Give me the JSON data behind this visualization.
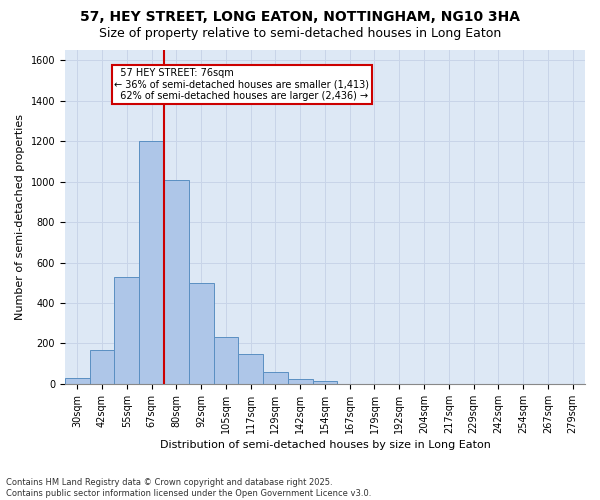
{
  "title": "57, HEY STREET, LONG EATON, NOTTINGHAM, NG10 3HA",
  "subtitle": "Size of property relative to semi-detached houses in Long Eaton",
  "xlabel": "Distribution of semi-detached houses by size in Long Eaton",
  "ylabel": "Number of semi-detached properties",
  "categories": [
    "30sqm",
    "42sqm",
    "55sqm",
    "67sqm",
    "80sqm",
    "92sqm",
    "105sqm",
    "117sqm",
    "129sqm",
    "142sqm",
    "154sqm",
    "167sqm",
    "179sqm",
    "192sqm",
    "204sqm",
    "217sqm",
    "229sqm",
    "242sqm",
    "254sqm",
    "267sqm",
    "279sqm"
  ],
  "values": [
    30,
    170,
    530,
    1200,
    1010,
    500,
    230,
    150,
    60,
    25,
    15,
    0,
    0,
    0,
    0,
    0,
    0,
    0,
    0,
    0,
    0
  ],
  "bar_color": "#aec6e8",
  "bar_edge_color": "#5a8fc2",
  "red_line_color": "#cc0000",
  "ylim": [
    0,
    1650
  ],
  "yticks": [
    0,
    200,
    400,
    600,
    800,
    1000,
    1200,
    1400,
    1600
  ],
  "grid_color": "#c8d4e8",
  "bg_color": "#dde8f5",
  "property_label": "57 HEY STREET: 76sqm",
  "pct_smaller": 36,
  "pct_larger": 62,
  "count_smaller": 1413,
  "count_larger": 2436,
  "annotation_box_color": "#ffffff",
  "annotation_box_edge": "#cc0000",
  "title_fontsize": 10,
  "subtitle_fontsize": 9,
  "axis_fontsize": 8,
  "tick_fontsize": 7,
  "footer_text": "Contains HM Land Registry data © Crown copyright and database right 2025.\nContains public sector information licensed under the Open Government Licence v3.0."
}
